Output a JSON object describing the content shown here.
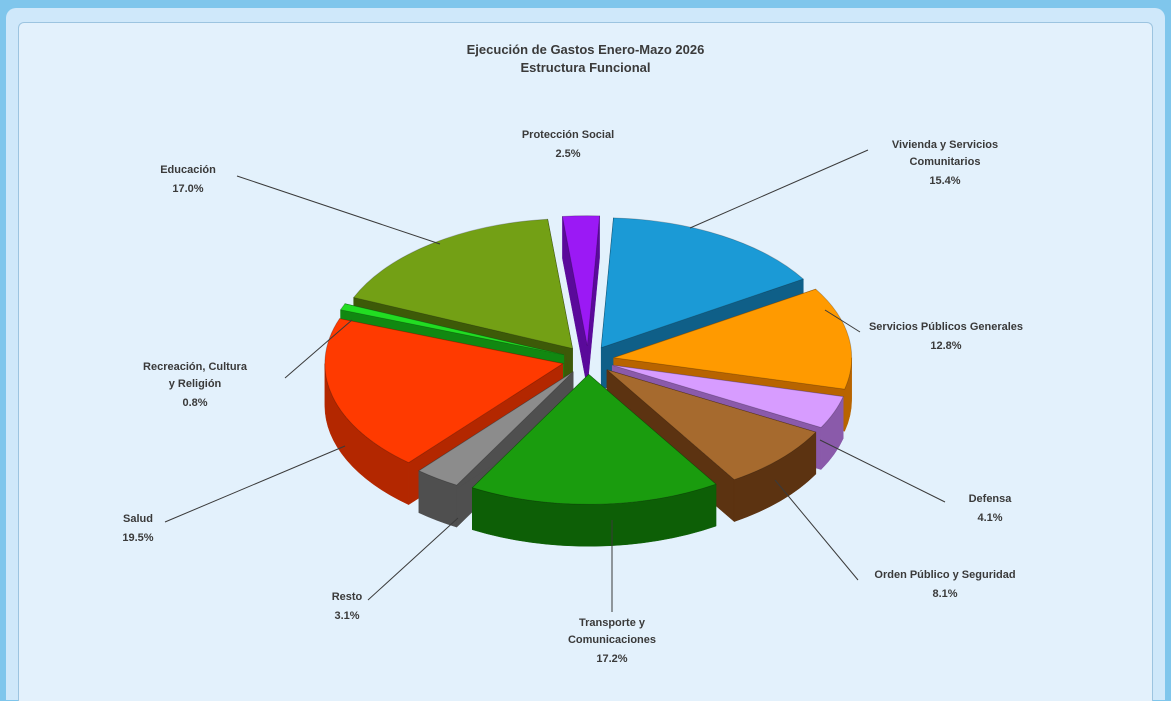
{
  "chart_data": {
    "type": "pie",
    "title": "Ejecución de Gastos Enero-Mazo 2026",
    "subtitle": "Estructura Funcional",
    "slices": [
      {
        "label": "Protección Social",
        "value": 2.5,
        "display": "2.5%",
        "color": "#9b19f5",
        "side": "#5a0a9a"
      },
      {
        "label": "Vivienda y Servicios Comunitarios",
        "value": 15.4,
        "display": "15.4%",
        "color": "#1b9ad6",
        "side": "#0f5f88"
      },
      {
        "label": "Servicios Públicos Generales",
        "value": 12.8,
        "display": "12.8%",
        "color": "#ff9a00",
        "side": "#b86400"
      },
      {
        "label": "Defensa",
        "value": 4.1,
        "display": "4.1%",
        "color": "#d79cff",
        "side": "#8a5aaa"
      },
      {
        "label": "Orden Público y Seguridad",
        "value": 8.1,
        "display": "8.1%",
        "color": "#a66a2e",
        "side": "#5c3311"
      },
      {
        "label": "Transporte y Comunicaciones",
        "value": 17.2,
        "display": "17.2%",
        "color": "#1a9c0e",
        "side": "#0d5f06"
      },
      {
        "label": "Resto",
        "value": 3.1,
        "display": "3.1%",
        "color": "#8c8c8c",
        "side": "#4f4f4f"
      },
      {
        "label": "Salud",
        "value": 19.5,
        "display": "19.5%",
        "color": "#ff3a00",
        "side": "#b32700"
      },
      {
        "label": "Recreación, Cultura y Religión",
        "value": 0.8,
        "display": "0.8%",
        "color": "#22dd22",
        "side": "#118811"
      },
      {
        "label": "Educación",
        "value": 17.0,
        "display": "17.0%",
        "color": "#73a015",
        "side": "#3d5a08"
      }
    ]
  }
}
